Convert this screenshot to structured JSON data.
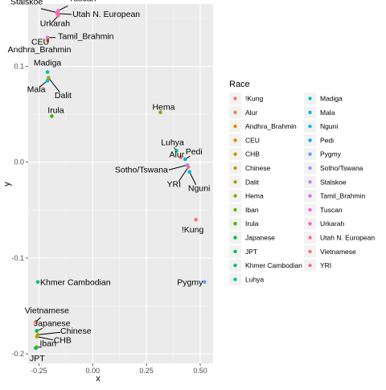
{
  "chart_data": {
    "type": "scatter",
    "xlabel": "x",
    "ylabel": "y",
    "xlim": [
      -0.3,
      0.56
    ],
    "ylim": [
      -0.21,
      0.165
    ],
    "x_ticks": [
      -0.25,
      0.0,
      0.25,
      0.5
    ],
    "x_tick_labels": [
      "-0.25",
      "0.00",
      "0.25",
      "0.50"
    ],
    "y_ticks": [
      -0.2,
      -0.1,
      0.0,
      0.1
    ],
    "y_tick_labels": [
      "-0.2",
      "-0.1",
      "0.0",
      "0.1"
    ],
    "grid": true,
    "legend": {
      "title": "Race",
      "placement": "right",
      "columns": 2
    },
    "series": [
      {
        "name": "!Kung",
        "color": "#F8766D",
        "x": 0.48,
        "y": -0.06
      },
      {
        "name": "Alur",
        "color": "#F07F4F",
        "x": 0.41,
        "y": 0.005
      },
      {
        "name": "Andhra_Brahmin",
        "color": "#E58700",
        "x": -0.21,
        "y": 0.128
      },
      {
        "name": "CEU",
        "color": "#D89000",
        "x": -0.21,
        "y": 0.127
      },
      {
        "name": "CHB",
        "color": "#C99800",
        "x": -0.26,
        "y": -0.182
      },
      {
        "name": "Chinese",
        "color": "#B79F00",
        "x": -0.255,
        "y": -0.18
      },
      {
        "name": "Dalit",
        "color": "#A3A500",
        "x": -0.205,
        "y": 0.088
      },
      {
        "name": "Hema",
        "color": "#8BAB00",
        "x": 0.315,
        "y": 0.052
      },
      {
        "name": "Iban",
        "color": "#6BB100",
        "x": -0.26,
        "y": -0.193
      },
      {
        "name": "Irula",
        "color": "#39B600",
        "x": -0.19,
        "y": 0.048
      },
      {
        "name": "Japanese",
        "color": "#00BA38",
        "x": -0.26,
        "y": -0.176
      },
      {
        "name": "JPT",
        "color": "#00BD5F",
        "x": -0.265,
        "y": -0.194
      },
      {
        "name": "Khmer Cambodian",
        "color": "#00BF7D",
        "x": -0.255,
        "y": -0.125
      },
      {
        "name": "Luhya",
        "color": "#00C097",
        "x": 0.39,
        "y": 0.012
      },
      {
        "name": "Madiga",
        "color": "#00BFAF",
        "x": -0.21,
        "y": 0.094
      },
      {
        "name": "Mala",
        "color": "#00BCD8",
        "x": -0.21,
        "y": 0.085
      },
      {
        "name": "Nguni",
        "color": "#00B9E3",
        "x": 0.45,
        "y": -0.01
      },
      {
        "name": "Pedi",
        "color": "#00A9FF",
        "x": 0.43,
        "y": 0.003
      },
      {
        "name": "Pygmy",
        "color": "#619CFF",
        "x": 0.52,
        "y": -0.125
      },
      {
        "name": "Sotho/Tswana",
        "color": "#9590FF",
        "x": 0.44,
        "y": -0.003
      },
      {
        "name": "Stalskoe",
        "color": "#C77CFF",
        "x": -0.165,
        "y": 0.156
      },
      {
        "name": "Tamil_Brahmin",
        "color": "#E76BF3",
        "x": -0.21,
        "y": 0.13
      },
      {
        "name": "Tuscan",
        "color": "#F564E3",
        "x": -0.16,
        "y": 0.158
      },
      {
        "name": "Urkarah",
        "color": "#FF62BC",
        "x": -0.16,
        "y": 0.153
      },
      {
        "name": "Utah N. European",
        "color": "#FF6C91",
        "x": -0.165,
        "y": 0.155
      },
      {
        "name": "Vietnamese",
        "color": "#F8766D",
        "x": -0.265,
        "y": -0.167
      },
      {
        "name": "YRI",
        "color": "#FF6A98",
        "x": 0.445,
        "y": -0.005
      }
    ]
  }
}
